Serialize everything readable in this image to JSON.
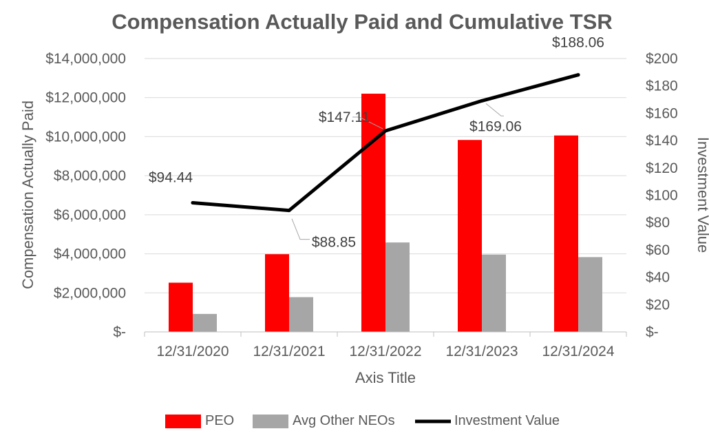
{
  "chart_data": {
    "type": "bar",
    "title": "Compensation Actually Paid and Cumulative TSR",
    "xlabel": "Axis Title",
    "ylabel": "Compensation Actually Paid",
    "y2label": "Investment Value",
    "categories": [
      "12/31/2020",
      "12/31/2021",
      "12/31/2022",
      "12/31/2023",
      "12/31/2024"
    ],
    "ylim": [
      0,
      14000000
    ],
    "y2lim": [
      0,
      200
    ],
    "yticks": [
      {
        "value": 0,
        "label": "$-"
      },
      {
        "value": 2000000,
        "label": "$2,000,000"
      },
      {
        "value": 4000000,
        "label": "$4,000,000"
      },
      {
        "value": 6000000,
        "label": "$6,000,000"
      },
      {
        "value": 8000000,
        "label": "$8,000,000"
      },
      {
        "value": 10000000,
        "label": "$10,000,000"
      },
      {
        "value": 12000000,
        "label": "$12,000,000"
      },
      {
        "value": 14000000,
        "label": "$14,000,000"
      }
    ],
    "y2ticks": [
      {
        "value": 0,
        "label": "$-"
      },
      {
        "value": 20,
        "label": "$20"
      },
      {
        "value": 40,
        "label": "$40"
      },
      {
        "value": 60,
        "label": "$60"
      },
      {
        "value": 80,
        "label": "$80"
      },
      {
        "value": 100,
        "label": "$100"
      },
      {
        "value": 120,
        "label": "$120"
      },
      {
        "value": 140,
        "label": "$140"
      },
      {
        "value": 160,
        "label": "$160"
      },
      {
        "value": 180,
        "label": "$180"
      },
      {
        "value": 200,
        "label": "$200"
      }
    ],
    "series": [
      {
        "name": "PEO",
        "type": "bar",
        "axis": "left",
        "color": "#ff0000",
        "values": [
          2520000,
          3980000,
          12200000,
          9830000,
          10060000
        ]
      },
      {
        "name": "Avg Other NEOs",
        "type": "bar",
        "axis": "left",
        "color": "#a6a6a6",
        "values": [
          920000,
          1780000,
          4580000,
          3960000,
          3830000
        ]
      },
      {
        "name": "Investment Value",
        "type": "line",
        "axis": "right",
        "color": "#000000",
        "values": [
          94.44,
          88.85,
          147.11,
          169.06,
          188.06
        ],
        "data_labels": [
          "$94.44",
          "$88.85",
          "$147.11",
          "$169.06",
          "$188.06"
        ]
      }
    ],
    "grid": true,
    "legend": "bottom"
  }
}
